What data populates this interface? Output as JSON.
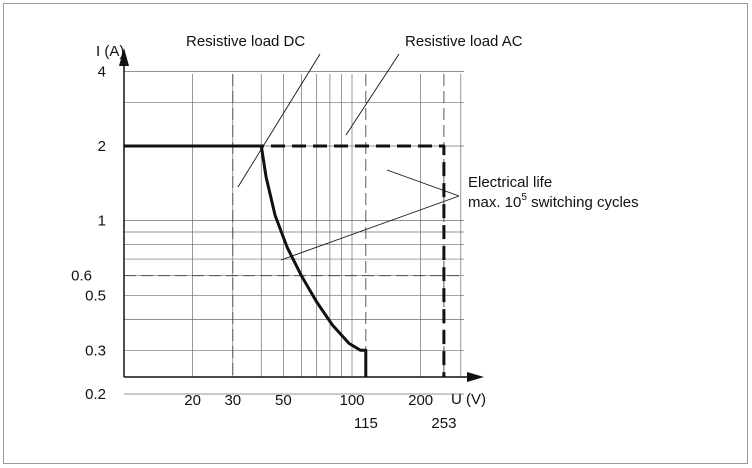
{
  "chart_data": {
    "type": "line",
    "title": "",
    "xlabel": "U (V)",
    "ylabel": "I (A)",
    "x_scale": "log",
    "y_scale": "log",
    "xlim": [
      10,
      400
    ],
    "ylim": [
      0.1,
      5
    ],
    "grid": true,
    "x_ticks": [
      {
        "value": 20,
        "label": "20",
        "row": 1
      },
      {
        "value": 30,
        "label": "30",
        "row": 1
      },
      {
        "value": 50,
        "label": "50",
        "row": 1
      },
      {
        "value": 100,
        "label": "100",
        "row": 1
      },
      {
        "value": 115,
        "label": "115",
        "row": 2
      },
      {
        "value": 200,
        "label": "200",
        "row": 1
      },
      {
        "value": 253,
        "label": "253",
        "row": 2
      }
    ],
    "y_ticks": [
      {
        "value": 4,
        "label": "4",
        "side": "inner"
      },
      {
        "value": 2,
        "label": "2",
        "side": "inner"
      },
      {
        "value": 1,
        "label": "1",
        "side": "inner"
      },
      {
        "value": 0.6,
        "label": "0.6",
        "side": "outer"
      },
      {
        "value": 0.5,
        "label": "0.5",
        "side": "inner"
      },
      {
        "value": 0.3,
        "label": "0.3",
        "side": "inner"
      },
      {
        "value": 0.2,
        "label": "0.2",
        "side": "inner"
      }
    ],
    "series": [
      {
        "name": "Resistive load DC",
        "style": "solid",
        "x": [
          10,
          40,
          42,
          46,
          52,
          60,
          70,
          82,
          97,
          109,
          115,
          115
        ],
        "y": [
          2,
          2,
          1.5,
          1.05,
          0.78,
          0.6,
          0.47,
          0.38,
          0.32,
          0.3,
          0.3,
          0.1
        ]
      },
      {
        "name": "Resistive load AC",
        "style": "dashed",
        "x": [
          10,
          253,
          253
        ],
        "y": [
          2,
          2,
          0.1
        ]
      }
    ],
    "annotations": [
      {
        "text_lines": [
          "Resistive load DC"
        ],
        "points_to": [
          [
            42,
            1.0
          ]
        ]
      },
      {
        "text_lines": [
          "Resistive load AC"
        ],
        "points_to": [
          [
            170,
            2.0
          ]
        ]
      },
      {
        "text_lines": [
          "Electrical life",
          "max. 10",
          "5",
          " switching cycles"
        ],
        "points_to": [
          [
            253,
            1.55
          ],
          [
            62,
            0.45
          ]
        ]
      }
    ],
    "colors": {
      "line": "#111111",
      "grid": "#6f6f6f",
      "frame": "#9a9a9a"
    }
  }
}
